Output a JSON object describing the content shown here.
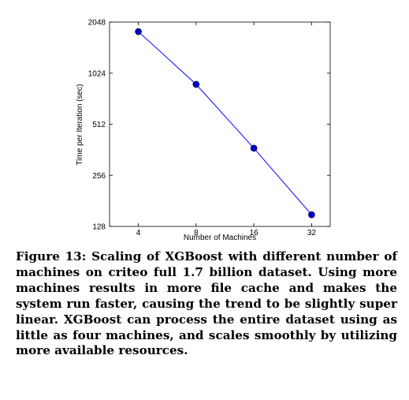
{
  "chart_data": {
    "type": "line",
    "x": [
      4,
      8,
      16,
      32
    ],
    "series": [
      {
        "values": [
          1800,
          880,
          370,
          150
        ],
        "color": "#0000ff",
        "marker": "circle",
        "marker_color": "#0000cc"
      }
    ],
    "xlabel": "Number of Machines",
    "ylabel": "Time per Iteration (sec)",
    "x_scale": "log2",
    "y_scale": "log2",
    "xlim": [
      2.83,
      40
    ],
    "ylim": [
      128,
      2048
    ],
    "xticks": [
      "4",
      "8",
      "16",
      "32"
    ],
    "yticks": [
      "128",
      "256",
      "512",
      "1024",
      "2048"
    ],
    "grid": false
  },
  "caption": {
    "label": "Figure 13:",
    "text": "Scaling of XGBoost with different number of machines on criteo full 1.7 billion dataset. Using more machines results in more file cache and makes the system run faster, causing the trend to be slightly super linear. XGBoost can process the entire dataset using as little as four machines, and scales smoothly by utilizing more available resources."
  }
}
